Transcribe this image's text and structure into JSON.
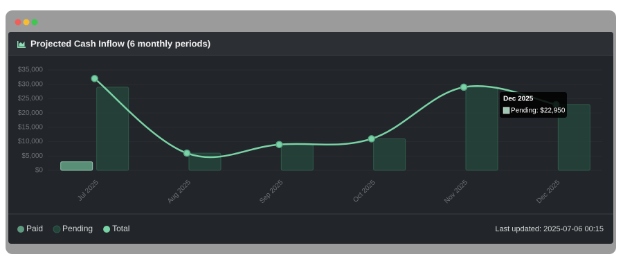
{
  "header": {
    "title": "Projected Cash Inflow (6 monthly periods)"
  },
  "chart_data": {
    "type": "bar",
    "categories": [
      "Jul 2025",
      "Aug 2025",
      "Sep 2025",
      "Oct 2025",
      "Nov 2025",
      "Dec 2025"
    ],
    "series": [
      {
        "name": "Paid",
        "type": "bar",
        "color": "#5f9a80",
        "values": [
          3000,
          0,
          0,
          0,
          0,
          0
        ]
      },
      {
        "name": "Pending",
        "type": "bar",
        "color": "#24443a",
        "values": [
          29000,
          6000,
          9000,
          11000,
          29000,
          22950
        ]
      },
      {
        "name": "Total",
        "type": "line",
        "color": "#7ad3a6",
        "values": [
          32000,
          6000,
          9000,
          11000,
          29000,
          22950
        ]
      }
    ],
    "ylim": [
      0,
      35000
    ],
    "yticks": [
      {
        "value": 0,
        "label": "$0"
      },
      {
        "value": 5000,
        "label": "$5,000"
      },
      {
        "value": 10000,
        "label": "$10,000"
      },
      {
        "value": 15000,
        "label": "$15,000"
      },
      {
        "value": 20000,
        "label": "$20,000"
      },
      {
        "value": 25000,
        "label": "$25,000"
      },
      {
        "value": 30000,
        "label": "$30,000"
      },
      {
        "value": 35000,
        "label": "$35,000"
      }
    ],
    "tooltip": {
      "title": "Dec 2025",
      "text": "Pending: $22,950"
    }
  },
  "footer": {
    "last_updated": "Last updated: 2025-07-06 00:15"
  }
}
